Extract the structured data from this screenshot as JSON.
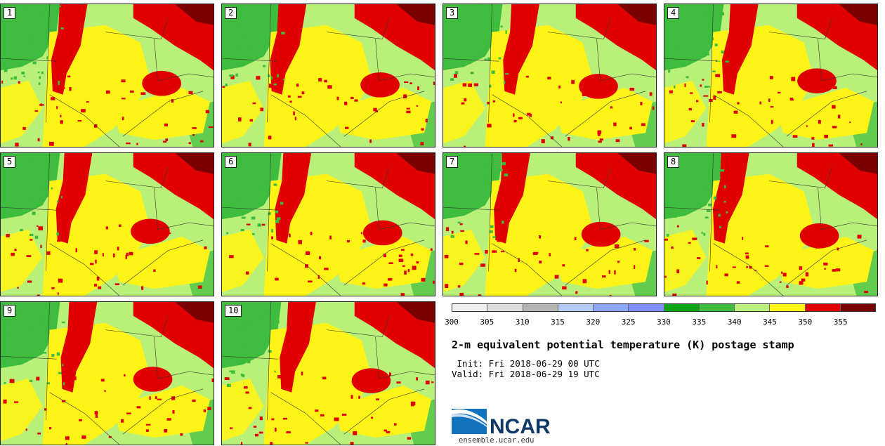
{
  "panels": [
    {
      "label": "1"
    },
    {
      "label": "2"
    },
    {
      "label": "3"
    },
    {
      "label": "4"
    },
    {
      "label": "5"
    },
    {
      "label": "6"
    },
    {
      "label": "7"
    },
    {
      "label": "8"
    },
    {
      "label": "9"
    },
    {
      "label": "10"
    }
  ],
  "colorbar": {
    "colors": [
      "#eeeeee",
      "#dcdcdc",
      "#b3b3b3",
      "#b3caf6",
      "#8aa6ff",
      "#7f8fff",
      "#0ca613",
      "#3dbc3d",
      "#b9f07a",
      "#fff416",
      "#e00000",
      "#7a0000"
    ],
    "ticks": [
      "300",
      "305",
      "310",
      "315",
      "320",
      "325",
      "330",
      "335",
      "340",
      "345",
      "350",
      "355"
    ]
  },
  "title": "2-m equivalent potential temperature (K) postage stamp",
  "init_line": " Init: Fri 2018-06-29 00 UTC",
  "valid_line": "Valid: Fri 2018-06-29 19 UTC",
  "logo": {
    "text": "NCAR",
    "url": "ensemble.ucar.edu",
    "color": "#0f3a68"
  }
}
